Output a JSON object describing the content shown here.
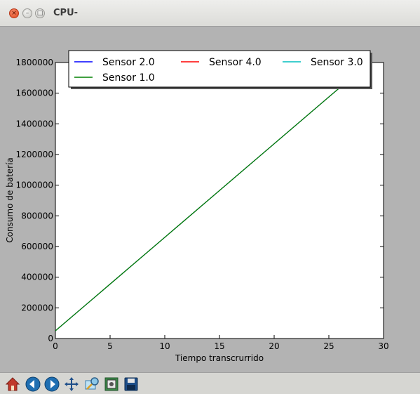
{
  "window": {
    "title": "CPU-"
  },
  "toolbar": {
    "buttons": [
      {
        "name": "home-icon"
      },
      {
        "name": "back-icon"
      },
      {
        "name": "forward-icon"
      },
      {
        "name": "pan-icon"
      },
      {
        "name": "zoom-icon"
      },
      {
        "name": "subplots-icon"
      },
      {
        "name": "save-icon"
      }
    ]
  },
  "chart_data": {
    "type": "line",
    "title": "",
    "xlabel": "Tiempo transcrurrido",
    "ylabel": "Consumo de batería",
    "xlim": [
      0,
      30
    ],
    "ylim": [
      0,
      1800000
    ],
    "xticks": [
      0,
      5,
      10,
      15,
      20,
      25,
      30
    ],
    "xtick_labels": [
      "0",
      "5",
      "10",
      "15",
      "20",
      "25",
      "30"
    ],
    "yticks": [
      0,
      200000,
      400000,
      600000,
      800000,
      1000000,
      1200000,
      1400000,
      1600000,
      1800000
    ],
    "ytick_labels": [
      "0",
      "200000",
      "400000",
      "600000",
      "800000",
      "1000000",
      "1200000",
      "1400000",
      "1600000",
      "1800000"
    ],
    "grid": false,
    "legend": {
      "placement": "top-center",
      "columns": 3
    },
    "series": [
      {
        "name": "Sensor 2.0",
        "color": "#0000ff",
        "x": [
          0,
          5,
          10,
          15,
          20,
          25,
          30
        ],
        "y": [
          50000,
          355000,
          660000,
          965000,
          1270000,
          1575000,
          1880000
        ]
      },
      {
        "name": "Sensor 4.0",
        "color": "#ff0000",
        "x": [
          0,
          5,
          10,
          15,
          20,
          25,
          30
        ],
        "y": [
          50000,
          355000,
          660000,
          965000,
          1270000,
          1575000,
          1880000
        ]
      },
      {
        "name": "Sensor 3.0",
        "color": "#00bfbf",
        "x": [
          0,
          5,
          10,
          15,
          20,
          25,
          30
        ],
        "y": [
          50000,
          355000,
          660000,
          965000,
          1270000,
          1575000,
          1880000
        ]
      },
      {
        "name": "Sensor 1.0",
        "color": "#008000",
        "x": [
          0,
          5,
          10,
          15,
          20,
          25,
          30
        ],
        "y": [
          50000,
          355000,
          660000,
          965000,
          1270000,
          1575000,
          1880000
        ]
      }
    ]
  }
}
